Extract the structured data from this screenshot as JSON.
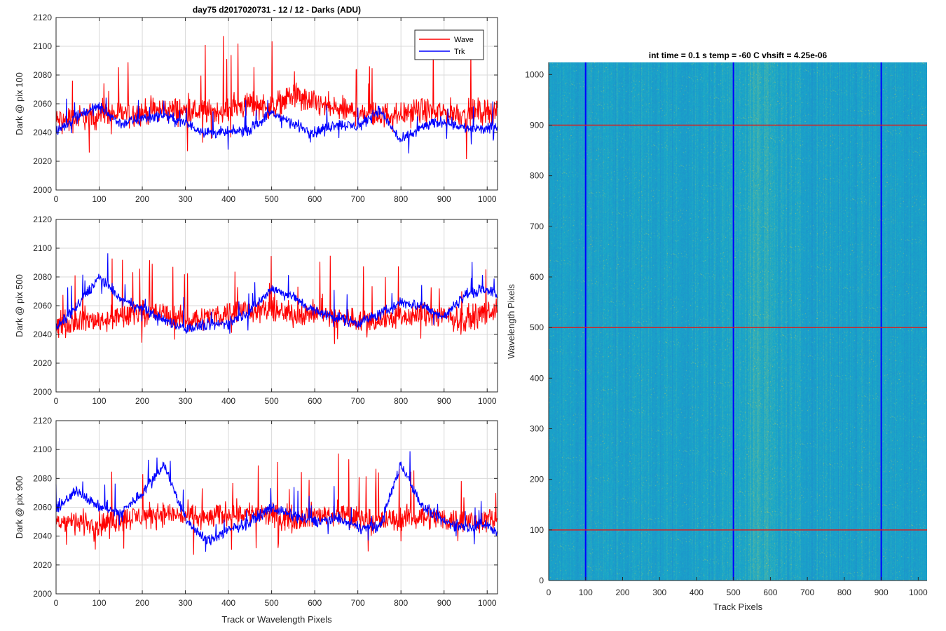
{
  "figure": {
    "background": "#ffffff",
    "colors": {
      "wave": "#ff0000",
      "trk": "#0000ff",
      "axis": "#262626",
      "grid": "#d9d9d9"
    }
  },
  "chart_data": [
    {
      "type": "line",
      "title": "day75 d2017020731 - 12 / 12 - Darks (ADU)",
      "xlabel": "",
      "ylabel": "Dark @ pix 100",
      "xlim": [
        0,
        1024
      ],
      "ylim": [
        2000,
        2120
      ],
      "xticks": [
        0,
        100,
        200,
        300,
        400,
        500,
        600,
        700,
        800,
        900,
        1000
      ],
      "yticks": [
        2000,
        2020,
        2040,
        2060,
        2080,
        2100,
        2120
      ],
      "x": [
        0,
        50,
        100,
        150,
        200,
        250,
        300,
        350,
        400,
        450,
        500,
        550,
        600,
        650,
        700,
        750,
        800,
        850,
        900,
        950,
        1000,
        1024
      ],
      "legend": {
        "entries": [
          "Wave",
          "Trk"
        ],
        "location": "top-right"
      },
      "series": [
        {
          "name": "Wave",
          "color": "#ff0000",
          "noise": 14,
          "values": [
            2048,
            2050,
            2052,
            2053,
            2054,
            2056,
            2055,
            2054,
            2056,
            2060,
            2058,
            2066,
            2060,
            2056,
            2054,
            2052,
            2053,
            2055,
            2054,
            2053,
            2055,
            2056
          ]
        },
        {
          "name": "Trk",
          "color": "#0000ff",
          "noise": 6,
          "values": [
            2040,
            2052,
            2058,
            2046,
            2050,
            2052,
            2046,
            2040,
            2040,
            2042,
            2054,
            2046,
            2040,
            2046,
            2044,
            2056,
            2034,
            2044,
            2048,
            2043,
            2042,
            2046
          ]
        }
      ]
    },
    {
      "type": "line",
      "title": "",
      "xlabel": "",
      "ylabel": "Dark @ pix 500",
      "xlim": [
        0,
        1024
      ],
      "ylim": [
        2000,
        2120
      ],
      "xticks": [
        0,
        100,
        200,
        300,
        400,
        500,
        600,
        700,
        800,
        900,
        1000
      ],
      "yticks": [
        2000,
        2020,
        2040,
        2060,
        2080,
        2100,
        2120
      ],
      "x": [
        0,
        50,
        100,
        150,
        200,
        250,
        300,
        350,
        400,
        450,
        500,
        550,
        600,
        650,
        700,
        750,
        800,
        850,
        900,
        950,
        1000,
        1024
      ],
      "series": [
        {
          "name": "Wave",
          "color": "#ff0000",
          "noise": 13,
          "values": [
            2046,
            2050,
            2050,
            2052,
            2056,
            2054,
            2050,
            2052,
            2055,
            2058,
            2056,
            2054,
            2055,
            2052,
            2050,
            2050,
            2052,
            2054,
            2052,
            2050,
            2056,
            2058
          ]
        },
        {
          "name": "Trk",
          "color": "#0000ff",
          "noise": 6,
          "values": [
            2044,
            2060,
            2080,
            2064,
            2058,
            2050,
            2044,
            2046,
            2048,
            2056,
            2072,
            2066,
            2056,
            2052,
            2048,
            2054,
            2062,
            2060,
            2052,
            2068,
            2072,
            2066
          ]
        }
      ]
    },
    {
      "type": "line",
      "title": "",
      "xlabel": "Track or Wavelength Pixels",
      "ylabel": "Dark @ pix 900",
      "xlim": [
        0,
        1024
      ],
      "ylim": [
        2000,
        2120
      ],
      "xticks": [
        0,
        100,
        200,
        300,
        400,
        500,
        600,
        700,
        800,
        900,
        1000
      ],
      "yticks": [
        2000,
        2020,
        2040,
        2060,
        2080,
        2100,
        2120
      ],
      "x": [
        0,
        50,
        100,
        150,
        200,
        250,
        300,
        350,
        400,
        450,
        500,
        550,
        600,
        650,
        700,
        750,
        800,
        850,
        900,
        950,
        1000,
        1024
      ],
      "series": [
        {
          "name": "Wave",
          "color": "#ff0000",
          "noise": 13,
          "values": [
            2050,
            2050,
            2048,
            2052,
            2054,
            2056,
            2054,
            2052,
            2056,
            2056,
            2054,
            2052,
            2054,
            2056,
            2052,
            2050,
            2052,
            2054,
            2052,
            2050,
            2052,
            2050
          ]
        },
        {
          "name": "Trk",
          "color": "#0000ff",
          "noise": 6,
          "values": [
            2058,
            2072,
            2060,
            2056,
            2070,
            2090,
            2052,
            2036,
            2044,
            2050,
            2060,
            2054,
            2050,
            2052,
            2046,
            2046,
            2090,
            2060,
            2050,
            2046,
            2048,
            2042
          ]
        }
      ]
    },
    {
      "type": "heatmap",
      "title": "int time = 0.1 s   temp = -60 C   vhsift = 4.25e-06",
      "xlabel": "Track Pixels",
      "ylabel": "Wavelength Pixels",
      "xlim": [
        0,
        1024
      ],
      "ylim": [
        0,
        1024
      ],
      "xticks": [
        0,
        100,
        200,
        300,
        400,
        500,
        600,
        700,
        800,
        900,
        1000
      ],
      "yticks": [
        0,
        100,
        200,
        300,
        400,
        500,
        600,
        700,
        800,
        900,
        1000
      ],
      "colormap": {
        "low": "#1f7fd0",
        "mid": "#1aa8c8",
        "high": "#a8c86a"
      },
      "marker_lines": [
        {
          "orientation": "vertical",
          "value": 100,
          "color": "#0000ff"
        },
        {
          "orientation": "vertical",
          "value": 500,
          "color": "#0000ff"
        },
        {
          "orientation": "vertical",
          "value": 900,
          "color": "#0000ff"
        },
        {
          "orientation": "horizontal",
          "value": 100,
          "color": "#d62020"
        },
        {
          "orientation": "horizontal",
          "value": 500,
          "color": "#d62020"
        },
        {
          "orientation": "horizontal",
          "value": 900,
          "color": "#d62020"
        }
      ]
    }
  ]
}
